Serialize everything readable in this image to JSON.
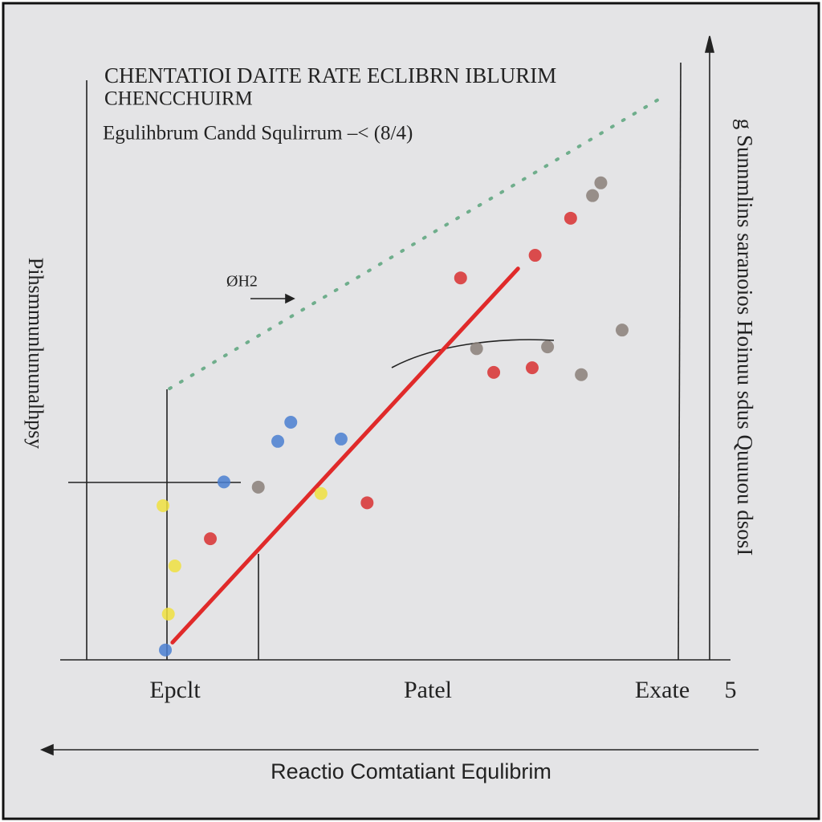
{
  "chart_data": {
    "type": "scatter",
    "title": "CHENTATIOI DAITE RATE ECLIBRN IBLURIM",
    "subtitle": "CHENCCHUIRM",
    "caption": "Egulihbrum Candd Squlirrum –< (8/4)",
    "annotation": "ØH2",
    "y_label": "Pihsmmunlununalhpsy",
    "right_label": "g Sunnmlins saranoios Hoinuu sdus Quuuou dsosI",
    "x_labels": [
      "Epclt",
      "Patel",
      "Exate",
      "5"
    ],
    "x_label": "Reactio Comtatiant Equlibrim",
    "xlim": [
      0,
      100
    ],
    "ylim": [
      0,
      100
    ],
    "series": [
      {
        "color": "#6fae8c",
        "mode": "dotted-line",
        "x": [
          14,
          30,
          45,
          60,
          75,
          90,
          98
        ],
        "values": [
          46.8,
          56.5,
          65.5,
          74.6,
          83.6,
          92.7,
          97.5
        ]
      },
      {
        "color": "#e02a2a",
        "mode": "line",
        "x": [
          14.5,
          72.9
        ],
        "values": [
          3,
          67.5
        ]
      },
      {
        "color": "#d83030",
        "mode": "markers",
        "x": [
          63.2,
          47.4,
          68.8,
          75.3,
          81.8,
          75.8,
          20.9
        ],
        "values": [
          65.9,
          27.1,
          49.6,
          50.4,
          76.2,
          69.8,
          20.9
        ]
      },
      {
        "color": "#8a7f78",
        "mode": "markers",
        "x": [
          29,
          65.9,
          77.9,
          83.6,
          90.5,
          85.5,
          86.9
        ],
        "values": [
          29.8,
          53.7,
          54,
          49.2,
          56.9,
          80.1,
          82.3
        ]
      },
      {
        "color": "#4a7fd0",
        "mode": "markers",
        "x": [
          34.5,
          32.3,
          43,
          13.3,
          23.2
        ],
        "values": [
          41,
          37.7,
          38.1,
          1.7,
          30.7
        ]
      },
      {
        "color": "#f0e040",
        "mode": "markers",
        "x": [
          12.9,
          39.6,
          13.8,
          14.9
        ],
        "values": [
          26.6,
          28.7,
          7.9,
          16.2
        ]
      }
    ]
  }
}
